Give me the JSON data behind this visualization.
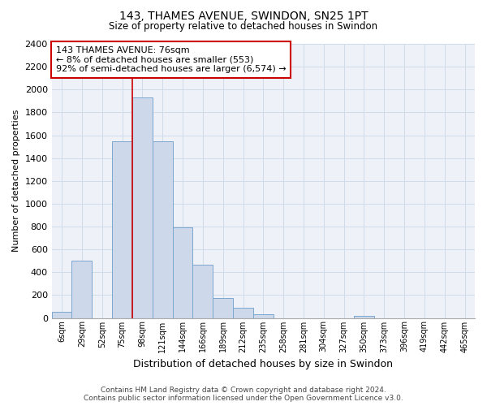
{
  "title": "143, THAMES AVENUE, SWINDON, SN25 1PT",
  "subtitle": "Size of property relative to detached houses in Swindon",
  "xlabel": "Distribution of detached houses by size in Swindon",
  "ylabel": "Number of detached properties",
  "bin_labels": [
    "6sqm",
    "29sqm",
    "52sqm",
    "75sqm",
    "98sqm",
    "121sqm",
    "144sqm",
    "166sqm",
    "189sqm",
    "212sqm",
    "235sqm",
    "258sqm",
    "281sqm",
    "304sqm",
    "327sqm",
    "350sqm",
    "373sqm",
    "396sqm",
    "419sqm",
    "442sqm",
    "465sqm"
  ],
  "bar_values": [
    50,
    500,
    0,
    1550,
    1930,
    1550,
    790,
    465,
    175,
    90,
    30,
    0,
    0,
    0,
    0,
    20,
    0,
    0,
    0,
    0,
    0
  ],
  "bar_color": "#cdd9ea",
  "bar_edge_color": "#7ba7ce",
  "property_line_color": "#cc0000",
  "property_line_index": 3.5,
  "ylim": [
    0,
    2400
  ],
  "yticks": [
    0,
    200,
    400,
    600,
    800,
    1000,
    1200,
    1400,
    1600,
    1800,
    2000,
    2200,
    2400
  ],
  "annotation_text": "143 THAMES AVENUE: 76sqm\n← 8% of detached houses are smaller (553)\n92% of semi-detached houses are larger (6,574) →",
  "annotation_box_color": "#ffffff",
  "annotation_box_edge": "#cc0000",
  "grid_color": "#d0dce8",
  "footer_line1": "Contains HM Land Registry data © Crown copyright and database right 2024.",
  "footer_line2": "Contains public sector information licensed under the Open Government Licence v3.0."
}
